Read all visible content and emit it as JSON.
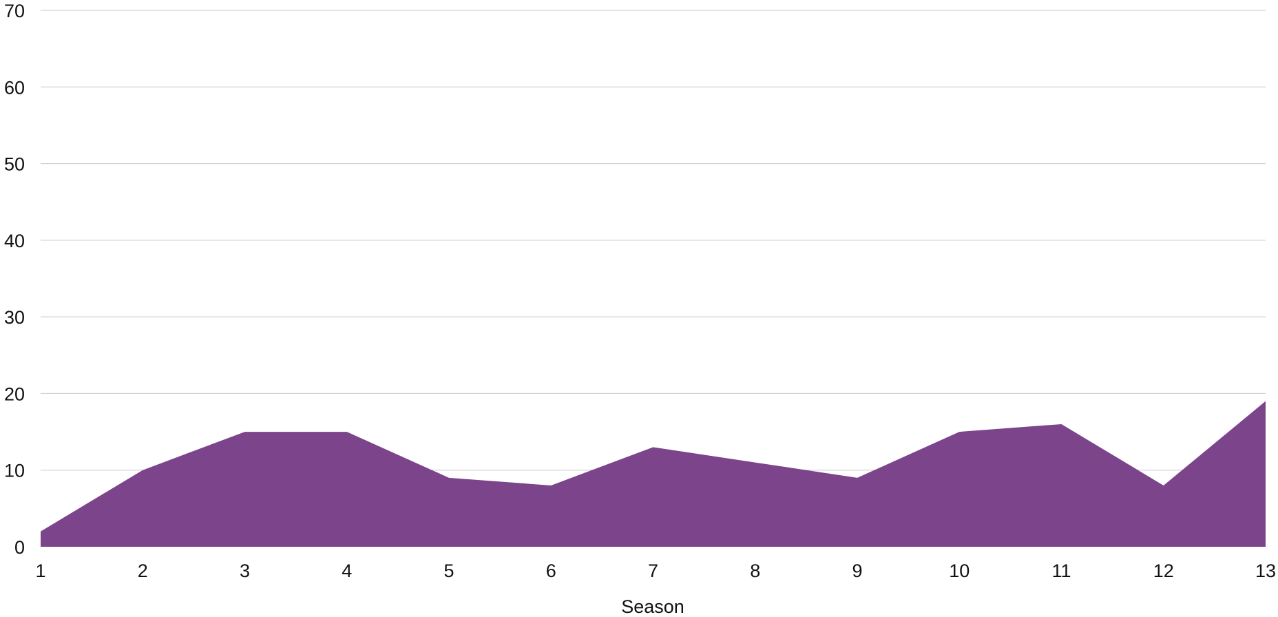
{
  "chart_data": {
    "type": "area",
    "xlabel": "Season",
    "ylabel": "",
    "x": [
      1,
      2,
      3,
      4,
      5,
      6,
      7,
      8,
      9,
      10,
      11,
      12,
      13
    ],
    "xlim": [
      1,
      13
    ],
    "ylim": [
      0,
      70
    ],
    "yticks": [
      0,
      10,
      20,
      30,
      40,
      50,
      60,
      70
    ],
    "grid": true,
    "legend": "none",
    "series": [
      {
        "values": [
          2,
          10,
          15,
          15,
          9,
          8,
          13,
          11,
          9,
          15,
          16,
          8,
          19
        ],
        "color": "#7b448b"
      }
    ]
  }
}
